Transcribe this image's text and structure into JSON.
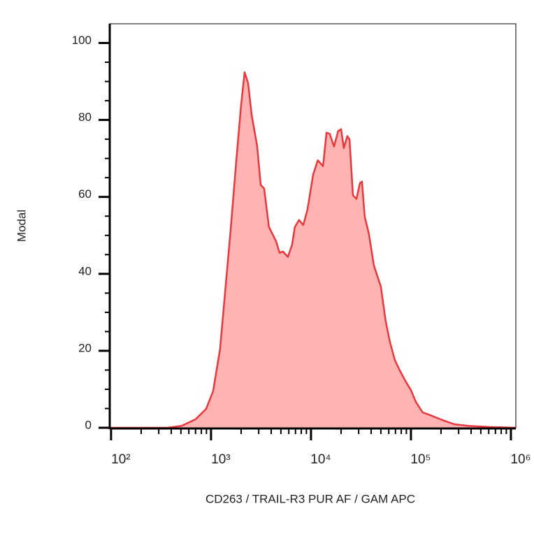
{
  "chart_data": {
    "type": "area",
    "x_label": "CD263 / TRAIL-R3  PUR AF / GAM APC",
    "y_label": "Modal",
    "x_scale": "log",
    "color": "#e8383d",
    "fill": "#ffb3b3",
    "x": [
      97,
      368,
      508,
      701,
      893,
      1050,
      1230,
      1380,
      1570,
      1790,
      2000,
      2170,
      2350,
      2550,
      2900,
      3140,
      3400,
      3800,
      4470,
      4840,
      5250,
      5880,
      6470,
      6900,
      7600,
      8380,
      9230,
      10500,
      11700,
      13200,
      14300,
      15400,
      17000,
      18700,
      20000,
      21300,
      23100,
      24300,
      26300,
      28500,
      30900,
      32400,
      34500,
      38000,
      42600,
      50000,
      56000,
      61700,
      69000,
      77300,
      87900,
      100000,
      112000,
      131000,
      155000,
      197000,
      272000,
      375000,
      607000,
      1120000
    ],
    "values": [
      0,
      0,
      0.5,
      2.2,
      4.9,
      9.5,
      20.4,
      34.9,
      51.3,
      69.5,
      84,
      92.4,
      89.5,
      81.3,
      73.1,
      63.1,
      62.2,
      52.2,
      48.5,
      45.5,
      45.8,
      44.4,
      47.6,
      52.2,
      54,
      52.7,
      56.7,
      65.8,
      69.5,
      68,
      76.7,
      76.4,
      73.1,
      77.1,
      77.6,
      72.7,
      75.8,
      74.9,
      60.4,
      59.5,
      63.6,
      64,
      54.9,
      50.4,
      42.2,
      36.7,
      27.6,
      22.2,
      17.6,
      14.9,
      12.2,
      9.8,
      6.7,
      4,
      3.3,
      2.2,
      0.9,
      0.5,
      0.2,
      0
    ],
    "xlim": [
      97,
      1120000
    ],
    "xticks": [
      {
        "value": 100,
        "label": "10²"
      },
      {
        "value": 1000,
        "label": "10³"
      },
      {
        "value": 10000,
        "label": "10⁴"
      },
      {
        "value": 100000,
        "label": "10⁵"
      },
      {
        "value": 1000000,
        "label": "10⁶"
      }
    ],
    "xminorticks": [
      200,
      300,
      400,
      500,
      600,
      700,
      800,
      900,
      2000,
      3000,
      4000,
      5000,
      6000,
      7000,
      8000,
      9000,
      20000,
      30000,
      40000,
      50000,
      60000,
      70000,
      80000,
      90000,
      200000,
      300000,
      400000,
      500000,
      600000,
      700000,
      800000,
      900000
    ],
    "ylim": [
      0,
      105
    ],
    "yticks": [
      0,
      20,
      40,
      60,
      80,
      100
    ],
    "yminorticks": [
      5,
      10,
      15,
      25,
      30,
      35,
      45,
      50,
      55,
      65,
      70,
      75,
      85,
      90,
      95
    ]
  }
}
